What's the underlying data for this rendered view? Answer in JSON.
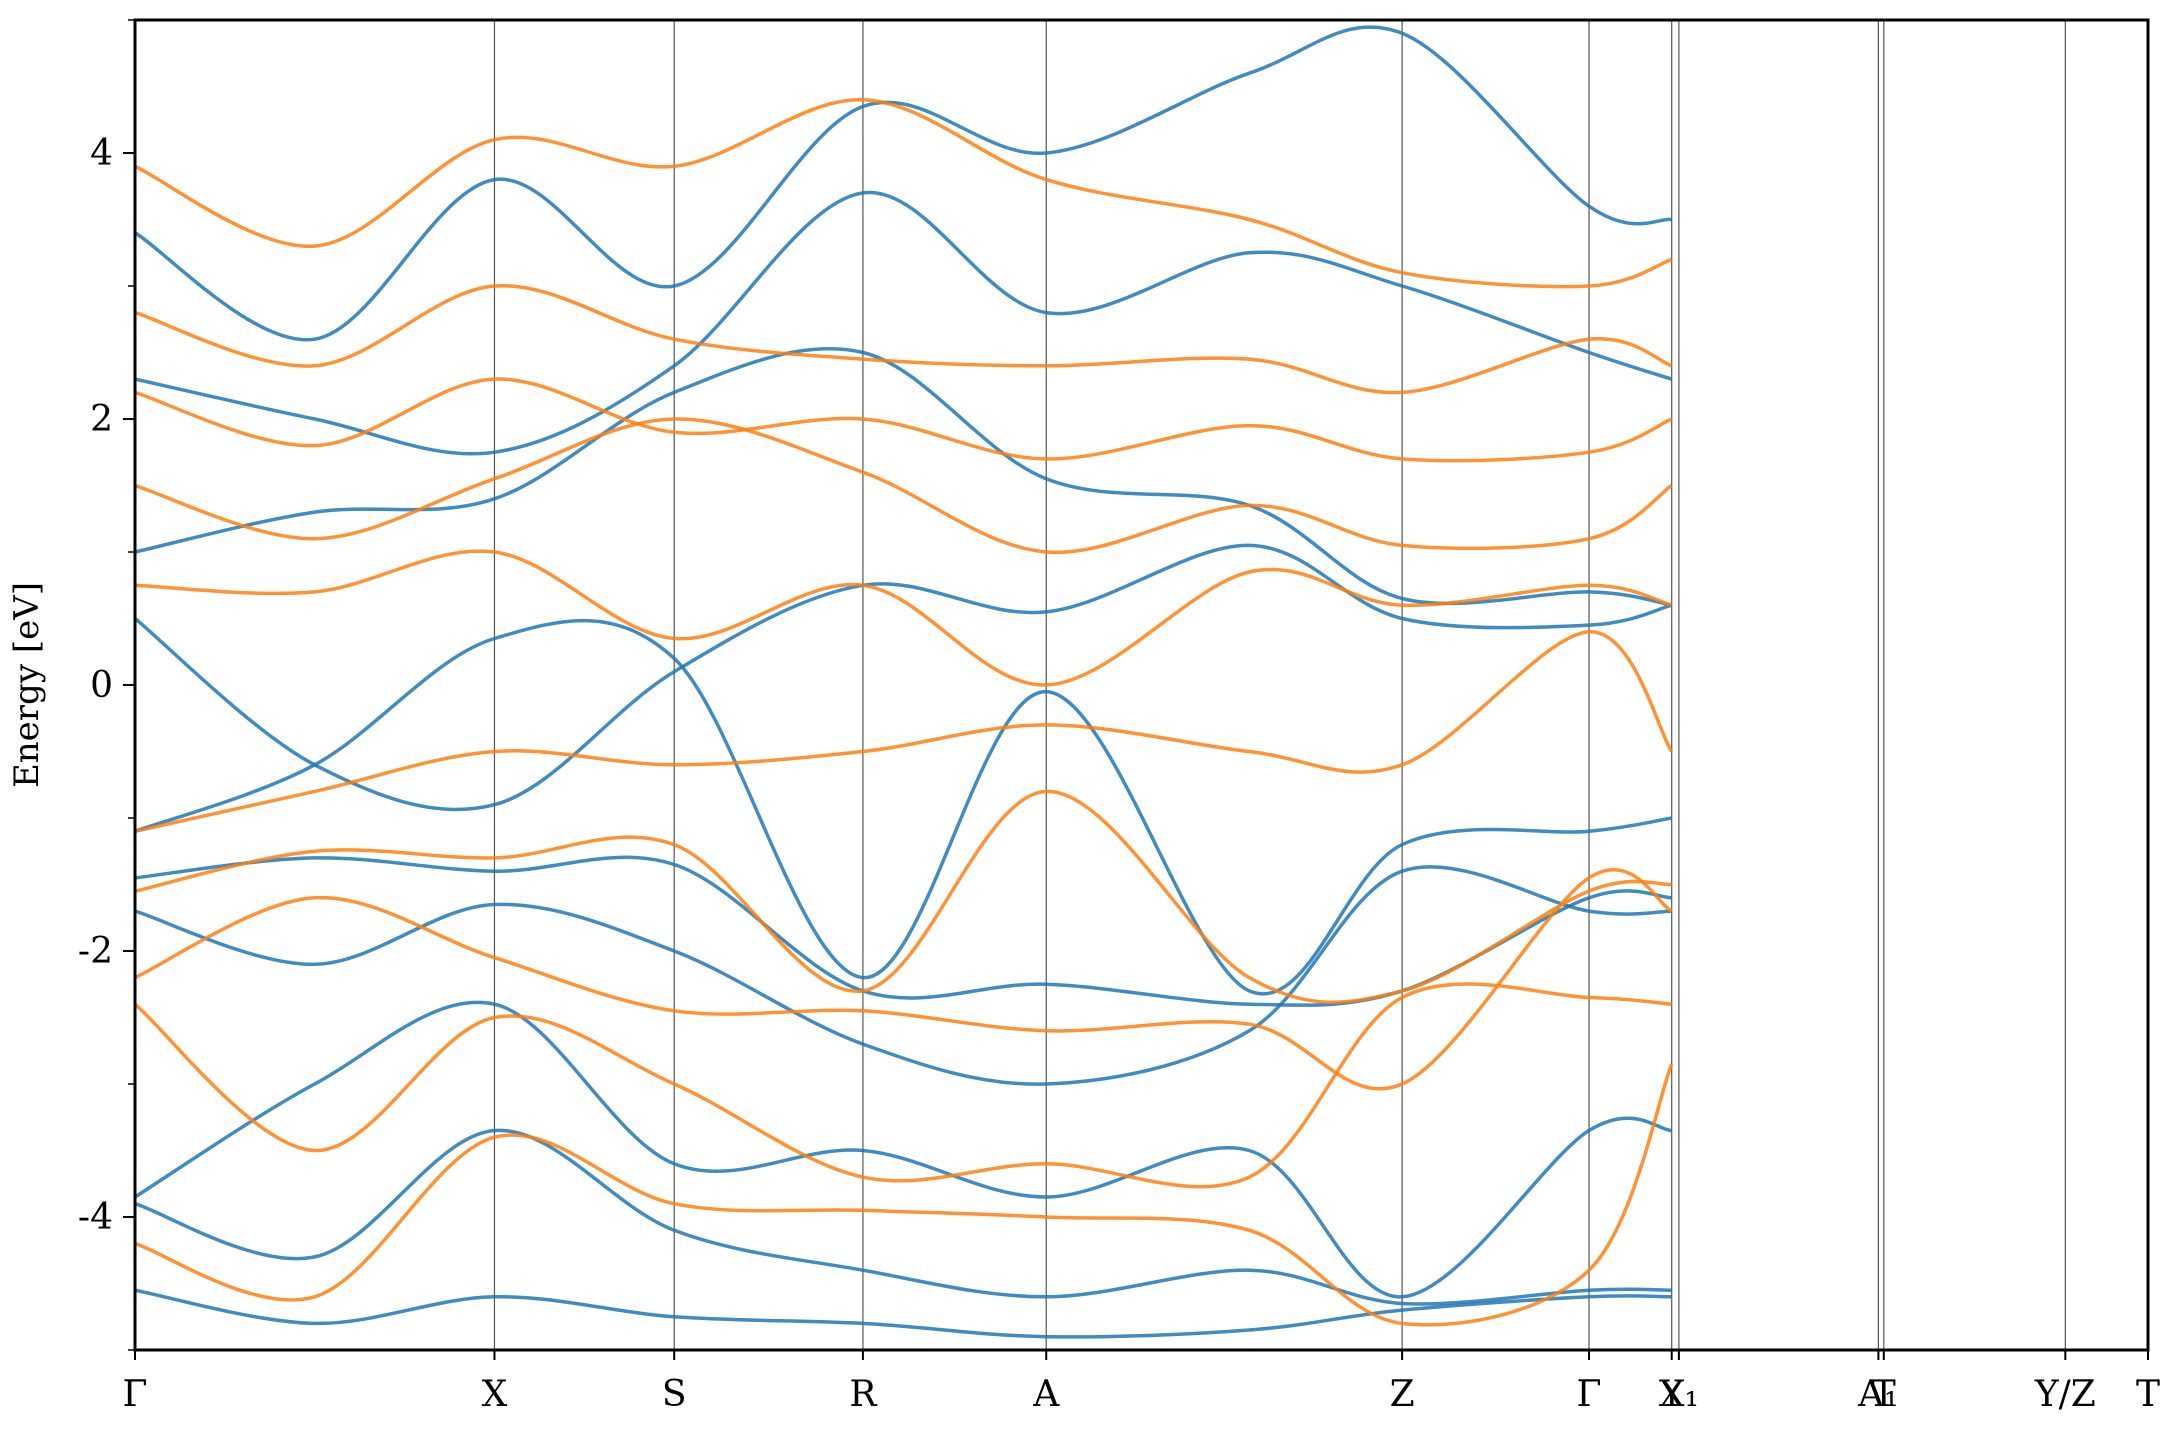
{
  "chart_data": {
    "type": "line",
    "title": "",
    "ylabel": "Energy [eV]",
    "xlabel": "",
    "ylim": [
      -5,
      5
    ],
    "yticks": [
      -4,
      -2,
      0,
      2,
      4
    ],
    "yticklabels": [
      "-4",
      "-2",
      "0",
      "2",
      "4"
    ],
    "grid": false,
    "legend": "none",
    "xrange": [
      0,
      11.2
    ],
    "kpoints": [
      {
        "label": "Γ",
        "x": 0.0
      },
      {
        "label": "X",
        "x": 2.0
      },
      {
        "label": "S",
        "x": 3.0
      },
      {
        "label": "R",
        "x": 4.05
      },
      {
        "label": "A",
        "x": 5.07
      },
      {
        "label": "Z",
        "x": 7.05
      },
      {
        "label": "Γ",
        "x": 8.09
      },
      {
        "label": "Y",
        "x": 8.55
      },
      {
        "label": "X₁",
        "x": 8.59
      },
      {
        "label": "A₁",
        "x": 9.7
      },
      {
        "label": "T",
        "x": 9.73
      },
      {
        "label": "Y/Z",
        "x": 10.74
      },
      {
        "label": "T",
        "x": 11.2
      }
    ],
    "series_colors": {
      "spin_up": "#1f77b4",
      "spin_down": "#ff7f0e"
    },
    "series": [
      {
        "color": "#1f77b4",
        "x": [
          0,
          1,
          2,
          3,
          4.05,
          5.07,
          6.2,
          7.05,
          8.09,
          8.55
        ],
        "y": [
          0.5,
          -0.6,
          -0.9,
          0.1,
          0.75,
          0.55,
          1.05,
          0.5,
          0.45,
          0.6
        ]
      },
      {
        "color": "#1f77b4",
        "x": [
          0,
          1,
          2,
          3,
          4.05,
          5.07,
          6.2,
          7.05,
          8.09,
          8.55
        ],
        "y": [
          -1.1,
          -0.6,
          0.35,
          0.2,
          -2.2,
          -0.05,
          -2.3,
          -1.2,
          -1.1,
          -1.0
        ]
      },
      {
        "color": "#1f77b4",
        "x": [
          0,
          1,
          2,
          3,
          4.05,
          5.07,
          6.2,
          7.05,
          8.09,
          8.55
        ],
        "y": [
          -1.45,
          -1.3,
          -1.4,
          -1.35,
          -2.3,
          -2.25,
          -2.4,
          -2.3,
          -1.6,
          -1.6
        ]
      },
      {
        "color": "#1f77b4",
        "x": [
          0,
          1,
          2,
          3,
          4.05,
          5.07,
          6.2,
          7.05,
          8.09,
          8.55
        ],
        "y": [
          -1.7,
          -2.1,
          -1.65,
          -2.0,
          -2.7,
          -3.0,
          -2.6,
          -1.4,
          -1.7,
          -1.7
        ]
      },
      {
        "color": "#1f77b4",
        "x": [
          0,
          1,
          2,
          3,
          4.05,
          5.07,
          6.2,
          7.05,
          8.09,
          8.55
        ],
        "y": [
          -3.85,
          -3.0,
          -2.4,
          -3.6,
          -3.5,
          -3.85,
          -3.5,
          -4.6,
          -3.35,
          -3.35
        ]
      },
      {
        "color": "#1f77b4",
        "x": [
          0,
          1,
          2,
          3,
          4.05,
          5.07,
          6.2,
          7.05,
          8.09,
          8.55
        ],
        "y": [
          -3.9,
          -4.3,
          -3.35,
          -4.1,
          -4.4,
          -4.6,
          -4.4,
          -4.65,
          -4.55,
          -4.55
        ]
      },
      {
        "color": "#1f77b4",
        "x": [
          0,
          1,
          2,
          3,
          4.05,
          5.07,
          6.2,
          7.05,
          8.09,
          8.55
        ],
        "y": [
          -4.55,
          -4.8,
          -4.6,
          -4.75,
          -4.8,
          -4.9,
          -4.85,
          -4.7,
          -4.6,
          -4.6
        ]
      },
      {
        "color": "#1f77b4",
        "x": [
          0,
          1,
          2,
          3,
          4.05,
          5.07,
          6.2,
          7.05,
          8.09,
          8.55
        ],
        "y": [
          1.0,
          1.3,
          1.4,
          2.2,
          2.5,
          1.55,
          1.35,
          0.65,
          0.7,
          0.6
        ]
      },
      {
        "color": "#1f77b4",
        "x": [
          0,
          1,
          2,
          3,
          4.05,
          5.07,
          6.2,
          7.05,
          8.09,
          8.55
        ],
        "y": [
          2.3,
          2.0,
          1.75,
          2.4,
          3.7,
          2.8,
          3.25,
          3.0,
          2.5,
          2.3
        ]
      },
      {
        "color": "#1f77b4",
        "x": [
          0,
          1,
          2,
          3,
          4.05,
          5.07,
          6.2,
          7.05,
          8.09,
          8.55
        ],
        "y": [
          3.4,
          2.6,
          3.8,
          3.0,
          4.35,
          4.0,
          4.6,
          4.9,
          3.6,
          3.5
        ]
      },
      {
        "color": "#ff7f0e",
        "x": [
          0,
          1,
          2,
          3,
          4.05,
          5.07,
          6.2,
          7.05,
          8.09,
          8.55
        ],
        "y": [
          -1.1,
          -0.8,
          -0.5,
          -0.6,
          -0.5,
          -0.3,
          -0.5,
          -0.6,
          0.4,
          -0.5
        ]
      },
      {
        "color": "#ff7f0e",
        "x": [
          0,
          1,
          2,
          3,
          4.05,
          5.07,
          6.2,
          7.05,
          8.09,
          8.55
        ],
        "y": [
          0.75,
          0.7,
          1.0,
          0.35,
          0.75,
          0.0,
          0.85,
          0.6,
          0.75,
          0.6
        ]
      },
      {
        "color": "#ff7f0e",
        "x": [
          0,
          1,
          2,
          3,
          4.05,
          5.07,
          6.2,
          7.05,
          8.09,
          8.55
        ],
        "y": [
          -1.55,
          -1.25,
          -1.3,
          -1.2,
          -2.3,
          -0.8,
          -2.2,
          -2.3,
          -1.55,
          -1.5
        ]
      },
      {
        "color": "#ff7f0e",
        "x": [
          0,
          1,
          2,
          3,
          4.05,
          5.07,
          6.2,
          7.05,
          8.09,
          8.55
        ],
        "y": [
          -2.2,
          -1.6,
          -2.05,
          -2.45,
          -2.45,
          -2.6,
          -2.55,
          -3.0,
          -1.45,
          -1.7
        ]
      },
      {
        "color": "#ff7f0e",
        "x": [
          0,
          1,
          2,
          3,
          4.05,
          5.07,
          6.2,
          7.05,
          8.09,
          8.55
        ],
        "y": [
          -2.4,
          -3.5,
          -2.5,
          -3.0,
          -3.7,
          -3.6,
          -3.7,
          -2.35,
          -2.35,
          -2.4
        ]
      },
      {
        "color": "#ff7f0e",
        "x": [
          0,
          1,
          2,
          3,
          4.05,
          5.07,
          6.2,
          7.05,
          8.09,
          8.55
        ],
        "y": [
          -4.2,
          -4.6,
          -3.4,
          -3.9,
          -3.95,
          -4.0,
          -4.1,
          -4.8,
          -4.4,
          -2.85
        ]
      },
      {
        "color": "#ff7f0e",
        "x": [
          0,
          1,
          2,
          3,
          4.05,
          5.07,
          6.2,
          7.05,
          8.09,
          8.55
        ],
        "y": [
          1.5,
          1.1,
          1.55,
          2.0,
          1.6,
          1.0,
          1.35,
          1.05,
          1.1,
          1.5
        ]
      },
      {
        "color": "#ff7f0e",
        "x": [
          0,
          1,
          2,
          3,
          4.05,
          5.07,
          6.2,
          7.05,
          8.09,
          8.55
        ],
        "y": [
          2.2,
          1.8,
          2.3,
          1.9,
          2.0,
          1.7,
          1.95,
          1.7,
          1.75,
          2.0
        ]
      },
      {
        "color": "#ff7f0e",
        "x": [
          0,
          1,
          2,
          3,
          4.05,
          5.07,
          6.2,
          7.05,
          8.09,
          8.55
        ],
        "y": [
          2.8,
          2.4,
          3.0,
          2.6,
          2.45,
          2.4,
          2.45,
          2.2,
          2.6,
          2.4
        ]
      },
      {
        "color": "#ff7f0e",
        "x": [
          0,
          1,
          2,
          3,
          4.05,
          5.07,
          6.2,
          7.05,
          8.09,
          8.55
        ],
        "y": [
          3.9,
          3.3,
          4.1,
          3.9,
          4.4,
          3.8,
          3.5,
          3.1,
          3.0,
          3.2
        ]
      }
    ]
  }
}
